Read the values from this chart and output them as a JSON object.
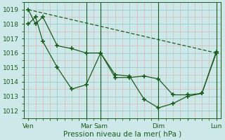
{
  "background_color": "#cce8e8",
  "grid_major_color": "#99cccc",
  "grid_minor_color": "#ddaaaa",
  "line_color": "#1a5c1a",
  "xlabel": "Pression niveau de la mer( hPa )",
  "ylim": [
    1011.5,
    1019.5
  ],
  "yticks": [
    1012,
    1013,
    1014,
    1015,
    1016,
    1017,
    1018,
    1019
  ],
  "xtick_labels": [
    "Ven",
    "",
    "Mar",
    "Sam",
    "",
    "Dim",
    "",
    "Lun"
  ],
  "xtick_positions": [
    0,
    2,
    4,
    5,
    7,
    9,
    11,
    13
  ],
  "vlines_x": [
    4,
    5,
    9,
    13
  ],
  "series1_x": [
    0,
    0.5,
    1,
    2,
    3,
    4,
    5,
    6,
    7,
    8,
    9,
    10,
    11,
    12,
    13
  ],
  "series1": [
    1019.0,
    1018.0,
    1018.5,
    1016.5,
    1016.3,
    1016.0,
    1016.0,
    1014.3,
    1014.3,
    1014.4,
    1014.2,
    1013.1,
    1013.1,
    1013.2,
    1016.0
  ],
  "series2_x": [
    0,
    0.5,
    1,
    2,
    3,
    4,
    5,
    6,
    7,
    8,
    9,
    10,
    11,
    12,
    13
  ],
  "series2": [
    1018.0,
    1018.5,
    1016.8,
    1015.0,
    1013.5,
    1013.8,
    1016.0,
    1014.5,
    1014.4,
    1012.8,
    1012.2,
    1012.5,
    1013.0,
    1013.2,
    1016.1
  ],
  "series3_x": [
    0,
    13
  ],
  "series3": [
    1019.0,
    1016.0
  ],
  "figsize": [
    3.2,
    2.0
  ],
  "dpi": 100
}
